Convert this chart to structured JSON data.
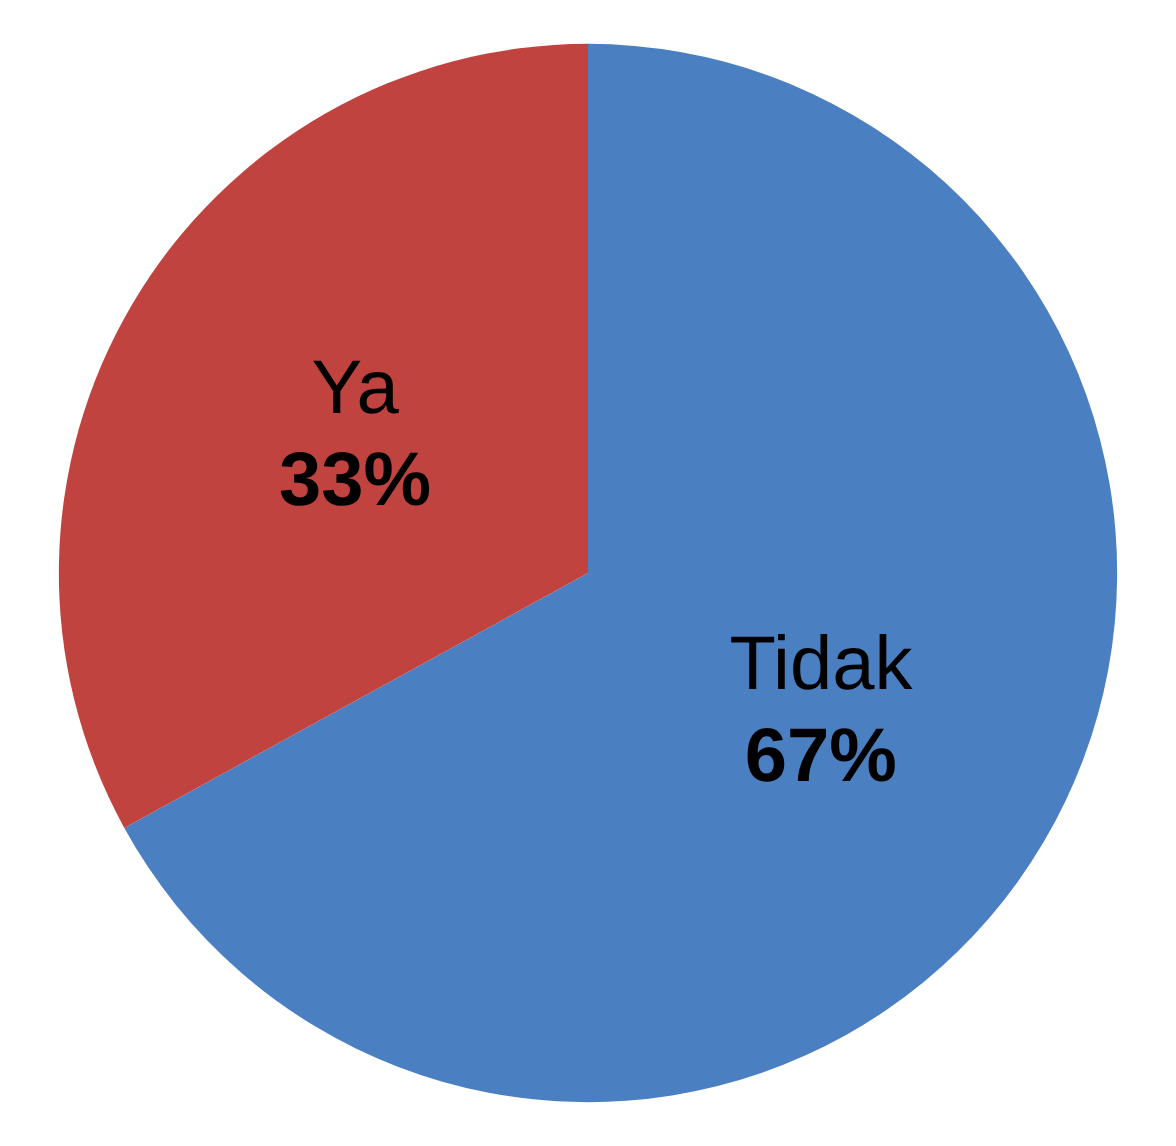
{
  "chart_data": {
    "type": "pie",
    "categories": [
      "Tidak",
      "Ya"
    ],
    "values": [
      67,
      33
    ],
    "colors": [
      "#4a7fc1",
      "#c0433f"
    ],
    "value_labels": [
      "67%",
      "33%"
    ],
    "legend": false
  }
}
